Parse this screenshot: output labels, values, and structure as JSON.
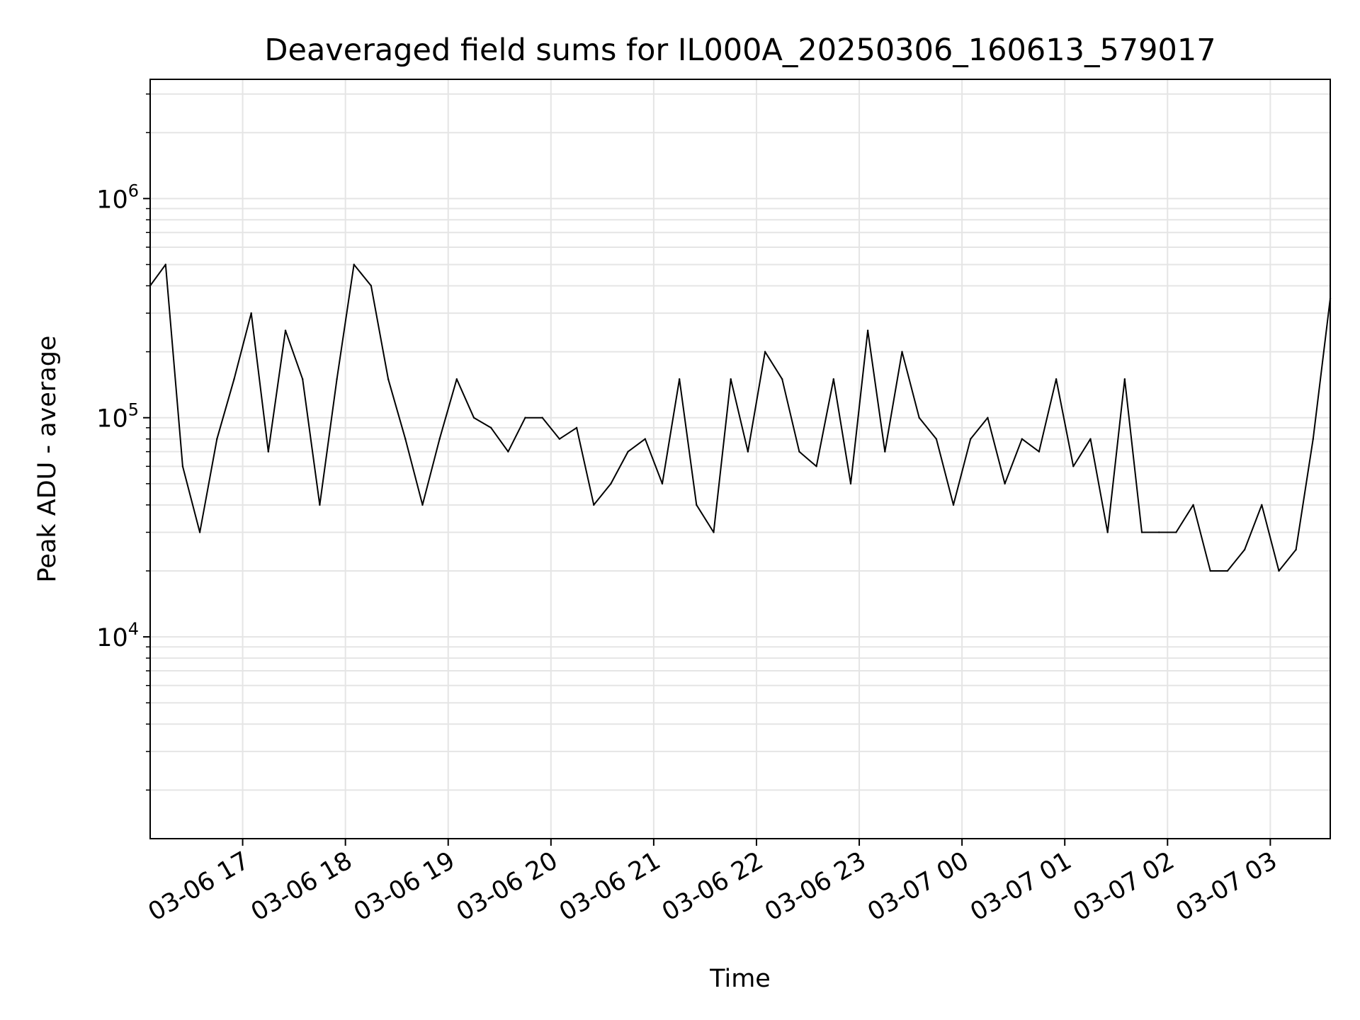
{
  "chart_data": {
    "type": "line",
    "title": "Deaveraged field sums for IL000A_20250306_160613_579017",
    "xlabel": "Time",
    "ylabel": "Peak ADU - average",
    "y_scale": "log",
    "ylim": [
      1200,
      3500000
    ],
    "xlim": [
      "2025-03-06 16:06",
      "2025-03-07 03:35"
    ],
    "grid": true,
    "legend": "none",
    "line_color": "#000000",
    "grid_color": "#e5e5e5",
    "x_ticks": [
      {
        "value": "2025-03-06 17:00",
        "label": "03-06 17"
      },
      {
        "value": "2025-03-06 18:00",
        "label": "03-06 18"
      },
      {
        "value": "2025-03-06 19:00",
        "label": "03-06 19"
      },
      {
        "value": "2025-03-06 20:00",
        "label": "03-06 20"
      },
      {
        "value": "2025-03-06 21:00",
        "label": "03-06 21"
      },
      {
        "value": "2025-03-06 22:00",
        "label": "03-06 22"
      },
      {
        "value": "2025-03-06 23:00",
        "label": "03-06 23"
      },
      {
        "value": "2025-03-07 00:00",
        "label": "03-07 00"
      },
      {
        "value": "2025-03-07 01:00",
        "label": "03-07 01"
      },
      {
        "value": "2025-03-07 02:00",
        "label": "03-07 02"
      },
      {
        "value": "2025-03-07 03:00",
        "label": "03-07 03"
      }
    ],
    "y_ticks": [
      {
        "value": 10000,
        "base": "10",
        "exp": "4"
      },
      {
        "value": 100000,
        "base": "10",
        "exp": "5"
      },
      {
        "value": 1000000,
        "base": "10",
        "exp": "6"
      }
    ],
    "series": [
      {
        "x": [
          "2025-03-06 16:06",
          "2025-03-06 16:15",
          "2025-03-06 16:25",
          "2025-03-06 16:35",
          "2025-03-06 16:45",
          "2025-03-06 16:55",
          "2025-03-06 17:05",
          "2025-03-06 17:15",
          "2025-03-06 17:25",
          "2025-03-06 17:35",
          "2025-03-06 17:45",
          "2025-03-06 17:55",
          "2025-03-06 18:05",
          "2025-03-06 18:15",
          "2025-03-06 18:25",
          "2025-03-06 18:35",
          "2025-03-06 18:45",
          "2025-03-06 18:55",
          "2025-03-06 19:05",
          "2025-03-06 19:15",
          "2025-03-06 19:25",
          "2025-03-06 19:35",
          "2025-03-06 19:45",
          "2025-03-06 19:55",
          "2025-03-06 20:05",
          "2025-03-06 20:15",
          "2025-03-06 20:25",
          "2025-03-06 20:35",
          "2025-03-06 20:45",
          "2025-03-06 20:55",
          "2025-03-06 21:05",
          "2025-03-06 21:15",
          "2025-03-06 21:25",
          "2025-03-06 21:35",
          "2025-03-06 21:45",
          "2025-03-06 21:55",
          "2025-03-06 22:05",
          "2025-03-06 22:15",
          "2025-03-06 22:25",
          "2025-03-06 22:35",
          "2025-03-06 22:45",
          "2025-03-06 22:55",
          "2025-03-06 23:05",
          "2025-03-06 23:15",
          "2025-03-06 23:25",
          "2025-03-06 23:35",
          "2025-03-06 23:45",
          "2025-03-06 23:55",
          "2025-03-07 00:05",
          "2025-03-07 00:15",
          "2025-03-07 00:25",
          "2025-03-07 00:35",
          "2025-03-07 00:45",
          "2025-03-07 00:55",
          "2025-03-07 01:05",
          "2025-03-07 01:15",
          "2025-03-07 01:25",
          "2025-03-07 01:35",
          "2025-03-07 01:45",
          "2025-03-07 01:55",
          "2025-03-07 02:05",
          "2025-03-07 02:15",
          "2025-03-07 02:25",
          "2025-03-07 02:35",
          "2025-03-07 02:45",
          "2025-03-07 02:55",
          "2025-03-07 03:05",
          "2025-03-07 03:15",
          "2025-03-07 03:25",
          "2025-03-07 03:35"
        ],
        "y": [
          400000,
          500000,
          60000,
          30000,
          80000,
          150000,
          300000,
          70000,
          250000,
          150000,
          40000,
          150000,
          500000,
          400000,
          150000,
          80000,
          40000,
          80000,
          150000,
          100000,
          90000,
          70000,
          100000,
          100000,
          80000,
          90000,
          40000,
          50000,
          70000,
          80000,
          50000,
          150000,
          40000,
          30000,
          150000,
          70000,
          200000,
          150000,
          70000,
          60000,
          150000,
          50000,
          250000,
          70000,
          200000,
          100000,
          80000,
          40000,
          80000,
          100000,
          50000,
          80000,
          70000,
          150000,
          60000,
          80000,
          30000,
          150000,
          30000,
          30000,
          30000,
          40000,
          20000,
          20000,
          25000,
          40000,
          20000,
          25000,
          80000,
          350000
        ]
      }
    ]
  }
}
